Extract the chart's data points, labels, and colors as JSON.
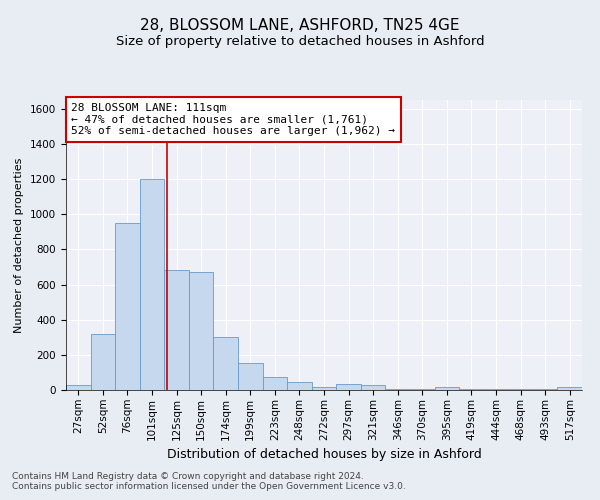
{
  "title1": "28, BLOSSOM LANE, ASHFORD, TN25 4GE",
  "title2": "Size of property relative to detached houses in Ashford",
  "xlabel": "Distribution of detached houses by size in Ashford",
  "ylabel": "Number of detached properties",
  "categories": [
    "27sqm",
    "52sqm",
    "76sqm",
    "101sqm",
    "125sqm",
    "150sqm",
    "174sqm",
    "199sqm",
    "223sqm",
    "248sqm",
    "272sqm",
    "297sqm",
    "321sqm",
    "346sqm",
    "370sqm",
    "395sqm",
    "419sqm",
    "444sqm",
    "468sqm",
    "493sqm",
    "517sqm"
  ],
  "values": [
    30,
    320,
    950,
    1200,
    680,
    670,
    300,
    155,
    75,
    45,
    18,
    35,
    28,
    3,
    3,
    18,
    3,
    3,
    3,
    3,
    18
  ],
  "bar_color": "#c5d8ee",
  "bar_edge_color": "#6699cc",
  "vline_x": 3.62,
  "vline_color": "#cc0000",
  "annotation_text": "28 BLOSSOM LANE: 111sqm\n← 47% of detached houses are smaller (1,761)\n52% of semi-detached houses are larger (1,962) →",
  "annotation_box_color": "#ffffff",
  "annotation_box_edge_color": "#cc0000",
  "ylim": [
    0,
    1650
  ],
  "yticks": [
    0,
    200,
    400,
    600,
    800,
    1000,
    1200,
    1400,
    1600
  ],
  "footer1": "Contains HM Land Registry data © Crown copyright and database right 2024.",
  "footer2": "Contains public sector information licensed under the Open Government Licence v3.0.",
  "background_color": "#e8edf4",
  "plot_background_color": "#edf1f7",
  "grid_color": "#ffffff",
  "title1_fontsize": 11,
  "title2_fontsize": 9.5,
  "xlabel_fontsize": 9,
  "ylabel_fontsize": 8,
  "tick_fontsize": 7.5,
  "annotation_fontsize": 8,
  "footer_fontsize": 6.5
}
